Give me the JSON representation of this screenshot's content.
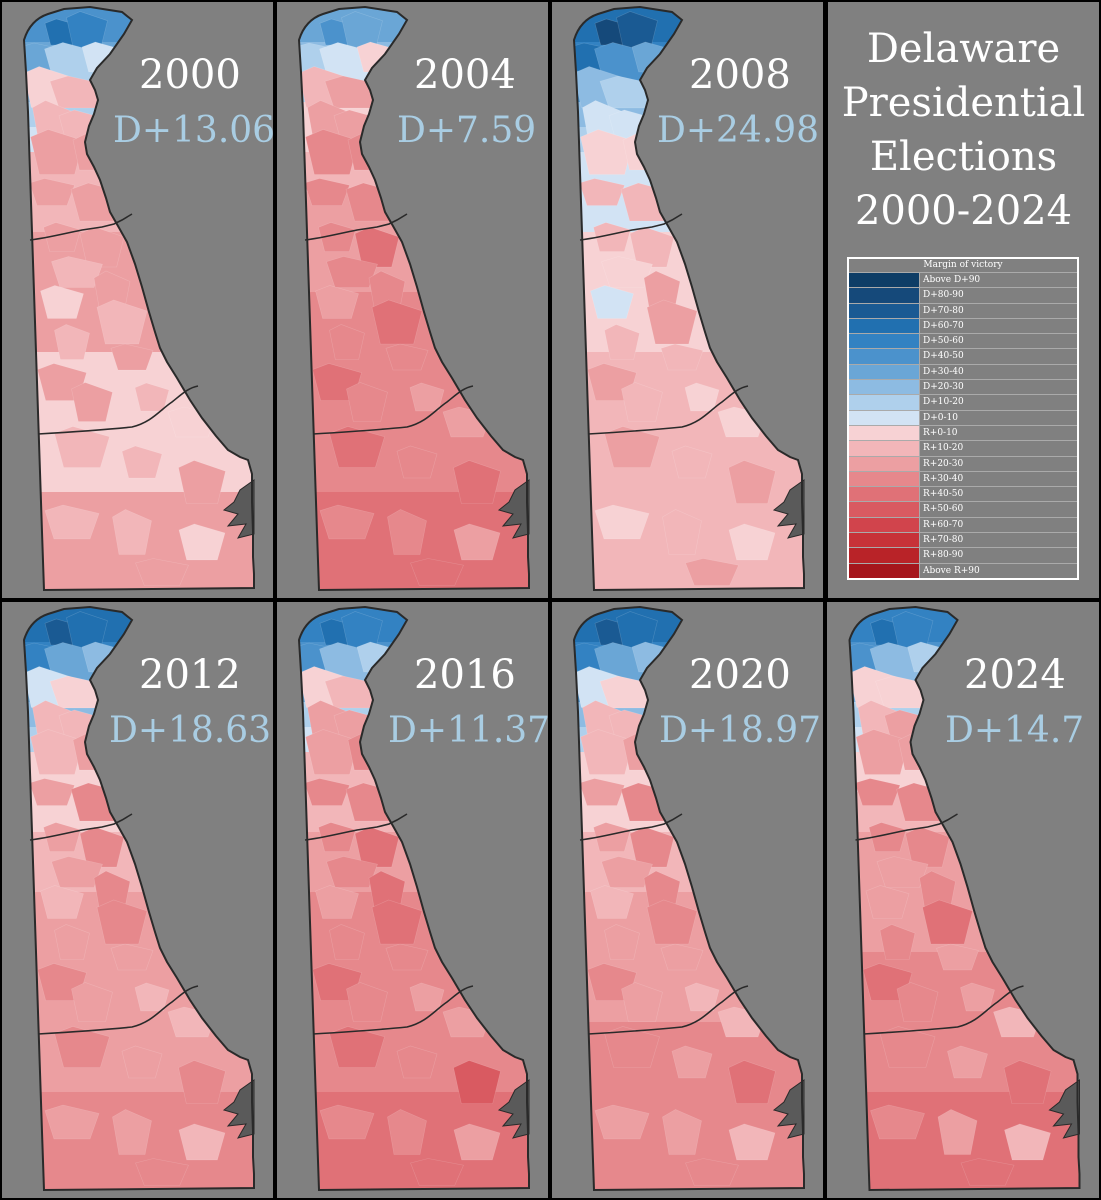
{
  "title": {
    "line1": "Delaware",
    "line2": "Presidential",
    "line3": "Elections",
    "line4": "2000-2024"
  },
  "legend": {
    "title": "Margin of victory",
    "items": [
      {
        "label": "Above D+90",
        "color": "#0e3d66"
      },
      {
        "label": "D+80-90",
        "color": "#15497a"
      },
      {
        "label": "D+70-80",
        "color": "#1a5a93"
      },
      {
        "label": "D+60-70",
        "color": "#2170b0"
      },
      {
        "label": "D+50-60",
        "color": "#3382c2"
      },
      {
        "label": "D+40-50",
        "color": "#4b92cc"
      },
      {
        "label": "D+30-40",
        "color": "#6aa6d6"
      },
      {
        "label": "D+20-30",
        "color": "#8dbbe2"
      },
      {
        "label": "D+10-20",
        "color": "#afd0ec"
      },
      {
        "label": "D+0-10",
        "color": "#d2e3f4"
      },
      {
        "label": "R+0-10",
        "color": "#f7d2d4"
      },
      {
        "label": "R+10-20",
        "color": "#f2b6b9"
      },
      {
        "label": "R+20-30",
        "color": "#ec9fa2"
      },
      {
        "label": "R+30-40",
        "color": "#e6888c"
      },
      {
        "label": "R+40-50",
        "color": "#e07177"
      },
      {
        "label": "R+50-60",
        "color": "#d95a61"
      },
      {
        "label": "R+60-70",
        "color": "#d1444c"
      },
      {
        "label": "R+70-80",
        "color": "#c73238"
      },
      {
        "label": "R+80-90",
        "color": "#b92328"
      },
      {
        "label": "Above R+90",
        "color": "#a5161c"
      }
    ]
  },
  "maps": [
    {
      "year": "2000",
      "margin": "D+13.06",
      "bands": [
        5,
        6,
        7,
        8,
        9,
        11,
        11,
        12,
        12,
        10,
        10,
        12
      ],
      "districts": [
        3,
        4,
        6,
        8,
        9,
        10,
        11,
        11,
        11,
        12,
        12,
        12,
        12,
        12,
        12,
        11,
        12,
        10,
        11,
        11,
        12,
        12,
        11,
        12,
        10,
        11,
        11,
        12,
        11,
        11,
        10,
        12
      ]
    },
    {
      "year": "2004",
      "margin": "D+7.59",
      "bands": [
        6,
        7,
        8,
        10,
        10,
        11,
        12,
        12,
        13,
        13,
        13,
        14
      ],
      "districts": [
        5,
        6,
        8,
        9,
        10,
        11,
        12,
        12,
        12,
        13,
        13,
        13,
        13,
        13,
        14,
        13,
        13,
        12,
        14,
        13,
        13,
        14,
        12,
        13,
        12,
        14,
        13,
        14,
        13,
        13,
        12,
        14
      ]
    },
    {
      "year": "2008",
      "margin": "D+24.98",
      "bands": [
        3,
        4,
        5,
        7,
        8,
        9,
        9,
        10,
        10,
        11,
        11,
        11
      ],
      "districts": [
        1,
        2,
        3,
        5,
        6,
        7,
        8,
        9,
        9,
        10,
        10,
        11,
        11,
        11,
        11,
        10,
        12,
        9,
        12,
        11,
        11,
        12,
        10,
        11,
        10,
        12,
        11,
        12,
        10,
        11,
        10,
        12
      ]
    },
    {
      "year": "2012",
      "margin": "D+18.63",
      "bands": [
        3,
        4,
        6,
        7,
        8,
        10,
        10,
        11,
        12,
        12,
        12,
        13
      ],
      "districts": [
        2,
        3,
        4,
        6,
        7,
        9,
        10,
        11,
        11,
        11,
        12,
        12,
        13,
        12,
        13,
        12,
        13,
        11,
        13,
        12,
        12,
        13,
        11,
        12,
        11,
        13,
        12,
        13,
        12,
        12,
        11,
        13
      ]
    },
    {
      "year": "2016",
      "margin": "D+11.37",
      "bands": [
        4,
        5,
        6,
        8,
        9,
        11,
        11,
        12,
        13,
        13,
        13,
        14
      ],
      "districts": [
        3,
        4,
        5,
        7,
        8,
        10,
        11,
        12,
        12,
        12,
        13,
        13,
        13,
        13,
        14,
        13,
        14,
        12,
        14,
        13,
        13,
        14,
        12,
        13,
        12,
        14,
        13,
        15,
        13,
        13,
        12,
        14
      ]
    },
    {
      "year": "2020",
      "margin": "D+18.97",
      "bands": [
        3,
        4,
        5,
        7,
        8,
        10,
        10,
        11,
        12,
        12,
        13,
        13
      ],
      "districts": [
        2,
        3,
        4,
        6,
        7,
        9,
        10,
        11,
        11,
        11,
        12,
        12,
        13,
        12,
        13,
        12,
        13,
        11,
        13,
        12,
        12,
        13,
        11,
        12,
        11,
        13,
        12,
        14,
        12,
        12,
        11,
        13
      ]
    },
    {
      "year": "2024",
      "margin": "D+14.7",
      "bands": [
        4,
        5,
        6,
        8,
        9,
        10,
        11,
        12,
        12,
        13,
        13,
        14
      ],
      "districts": [
        3,
        4,
        5,
        7,
        8,
        10,
        10,
        11,
        12,
        12,
        12,
        13,
        13,
        13,
        13,
        12,
        13,
        12,
        14,
        13,
        12,
        14,
        12,
        13,
        11,
        13,
        12,
        14,
        13,
        12,
        11,
        14
      ]
    }
  ],
  "colors": {
    "panel_bg": "#808080",
    "frame": "#000000",
    "margin_text": "#a9cde3",
    "water": "#5a5a5a",
    "outline": "#2a2a2a"
  }
}
